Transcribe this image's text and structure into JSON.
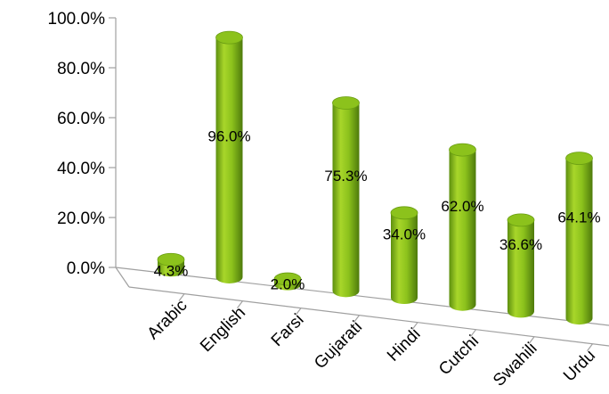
{
  "chart_data": {
    "type": "bar",
    "bar_shape": "cylinder",
    "perspective": "3d",
    "categories": [
      "Arabic",
      "English",
      "Farsi",
      "Gujarati",
      "Hindi",
      "Cutchi",
      "Swahili",
      "Urdu"
    ],
    "values": [
      4.3,
      96.0,
      2.0,
      75.3,
      34.0,
      62.0,
      36.6,
      64.1
    ],
    "data_labels": [
      "4.3%",
      "96.0%",
      "2.0%",
      "75.3%",
      "34.0%",
      "62.0%",
      "36.6%",
      "64.1%"
    ],
    "y_ticks": [
      "0.0%",
      "20.0%",
      "40.0%",
      "60.0%",
      "80.0%",
      "100.0%"
    ],
    "ylim": [
      0,
      100
    ],
    "grid": false,
    "legend": "none",
    "title": "",
    "xlabel": "",
    "ylabel": "",
    "colors": {
      "bar_light": "#a8d62a",
      "bar_mid": "#7fb31a",
      "bar_dark": "#4e7a0c",
      "bar_top": "#8cc21c",
      "axis": "#a0a0a0"
    }
  }
}
